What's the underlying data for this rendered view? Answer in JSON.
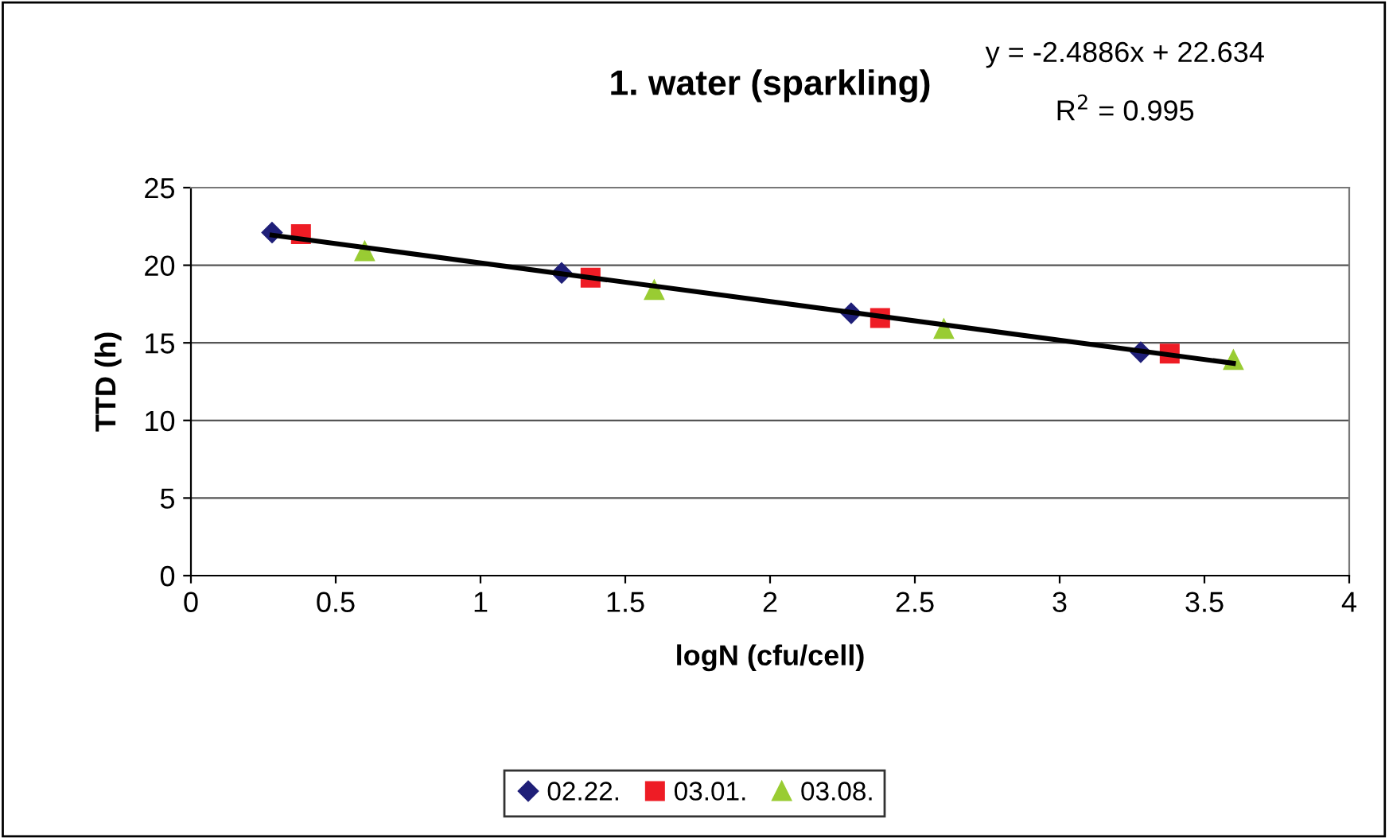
{
  "chart_data": {
    "type": "scatter",
    "title": "1. water (sparkling)",
    "xlabel": "logN (cfu/cell)",
    "ylabel": "TTD (h)",
    "annotations": [
      "y = -2.4886x + 22.634",
      "R$^{2}$ = 0.995"
    ],
    "series": [
      {
        "name": "02.22.",
        "color": "#1f1f78",
        "marker": "diamond",
        "x": [
          0.28,
          1.28,
          2.28,
          3.28
        ],
        "values": [
          22.1,
          19.5,
          16.9,
          14.4
        ]
      },
      {
        "name": "03.01.",
        "color": "#ee1c25",
        "marker": "square",
        "x": [
          0.38,
          1.38,
          2.38,
          3.38
        ],
        "values": [
          22.0,
          19.2,
          16.6,
          14.3
        ]
      },
      {
        "name": "03.08.",
        "color": "#99cc33",
        "marker": "triangle",
        "x": [
          0.6,
          1.6,
          2.6,
          3.6
        ],
        "values": [
          20.9,
          18.4,
          15.9,
          13.9
        ]
      },
      {
        "type": "line",
        "color": "#000000",
        "marker": "none",
        "x": [
          0.28,
          3.6
        ],
        "values": [
          21.94,
          13.68
        ]
      }
    ],
    "xlim": [
      0,
      4
    ],
    "xticks": [
      0,
      0.5,
      1,
      1.5,
      2,
      2.5,
      3,
      3.5,
      4
    ],
    "ylim": [
      0,
      25
    ],
    "yticks": [
      0,
      5,
      10,
      15,
      20,
      25
    ],
    "grid": "y",
    "legend": "bottom"
  }
}
